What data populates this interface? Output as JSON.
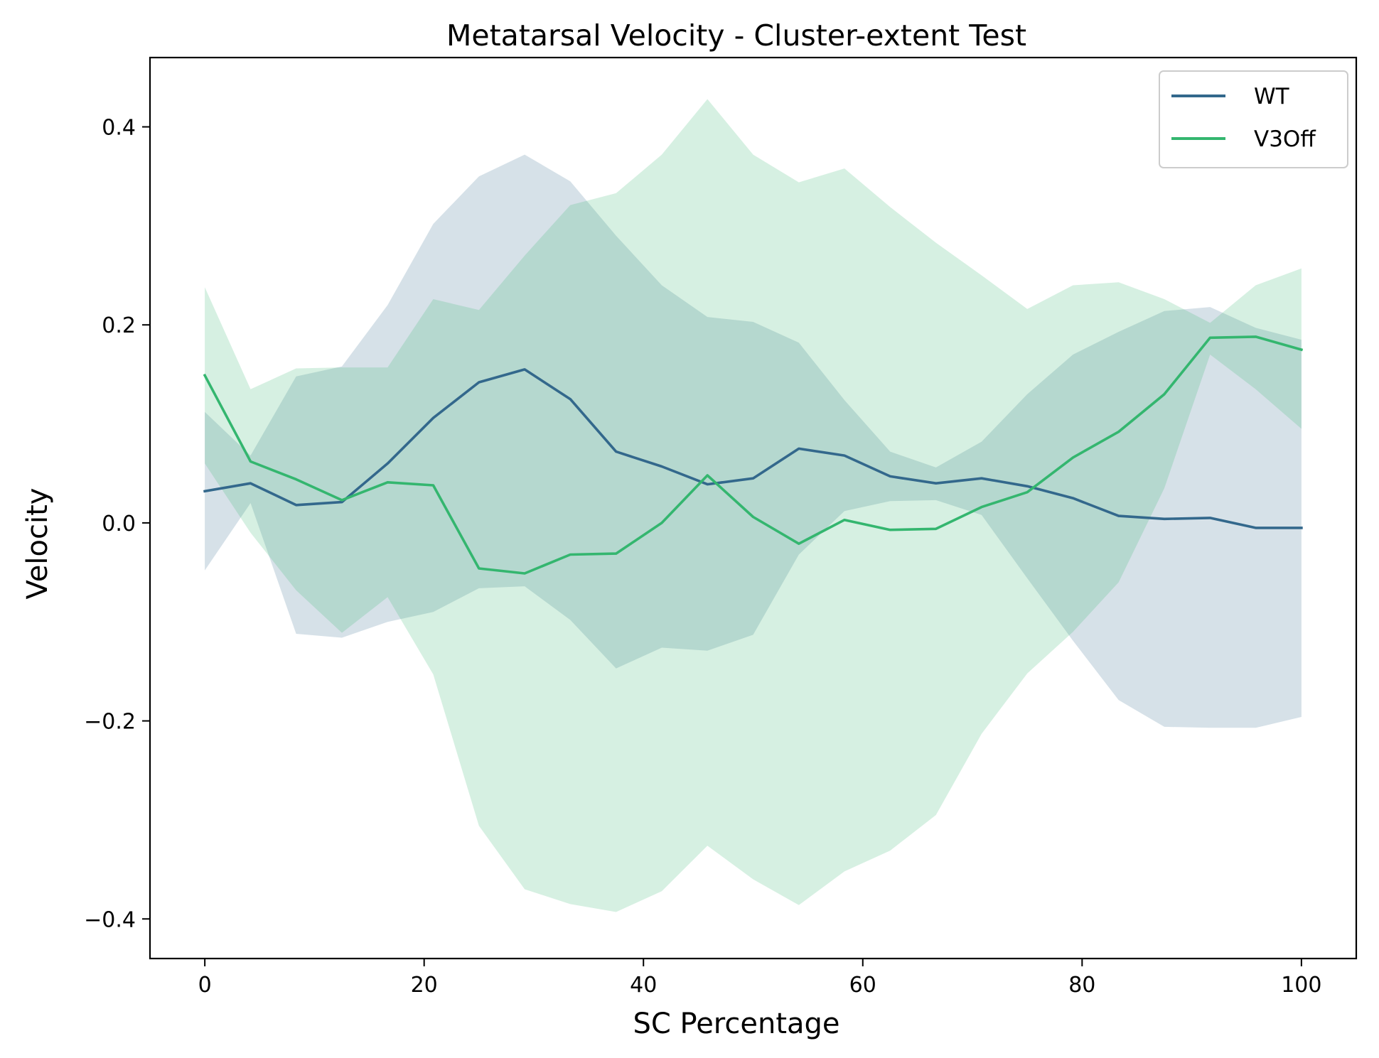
{
  "chart_data": {
    "type": "line",
    "title": "Metatarsal Velocity - Cluster-extent Test",
    "xlabel": "SC Percentage",
    "ylabel": "Velocity",
    "xlim": [
      -5,
      105
    ],
    "ylim": [
      -0.44,
      0.47
    ],
    "xticks": [
      0,
      20,
      40,
      60,
      80,
      100
    ],
    "xtick_labels": [
      "0",
      "20",
      "40",
      "60",
      "80",
      "100"
    ],
    "yticks": [
      -0.4,
      -0.2,
      0.0,
      0.2,
      0.4
    ],
    "ytick_labels": [
      "−0.4",
      "−0.2",
      "0.0",
      "0.2",
      "0.4"
    ],
    "grid": false,
    "legend_position": "top-right",
    "x": [
      0,
      4.17,
      8.33,
      12.5,
      16.67,
      20.83,
      25,
      29.17,
      33.33,
      37.5,
      41.67,
      45.83,
      50,
      54.17,
      58.33,
      62.5,
      66.67,
      70.83,
      75,
      79.17,
      83.33,
      87.5,
      91.67,
      95.83,
      100
    ],
    "series": [
      {
        "name": "WT",
        "color": "#33688c",
        "band_opacity": 0.2,
        "values": [
          0.032,
          0.04,
          0.018,
          0.021,
          0.06,
          0.106,
          0.142,
          0.155,
          0.125,
          0.072,
          0.057,
          0.039,
          0.045,
          0.075,
          0.068,
          0.047,
          0.04,
          0.045,
          0.037,
          0.025,
          0.007,
          0.004,
          0.005,
          -0.005,
          -0.005
        ],
        "upper": [
          0.112,
          0.068,
          0.148,
          0.158,
          0.22,
          0.302,
          0.35,
          0.372,
          0.345,
          0.29,
          0.24,
          0.208,
          0.203,
          0.182,
          0.124,
          0.072,
          0.056,
          0.082,
          0.13,
          0.17,
          0.193,
          0.214,
          0.218,
          0.197,
          0.185
        ],
        "lower": [
          -0.048,
          0.02,
          -0.112,
          -0.116,
          -0.1,
          -0.09,
          -0.066,
          -0.064,
          -0.098,
          -0.147,
          -0.126,
          -0.129,
          -0.113,
          -0.032,
          0.012,
          0.022,
          0.023,
          0.008,
          -0.056,
          -0.119,
          -0.179,
          -0.206,
          -0.207,
          -0.207,
          -0.196
        ]
      },
      {
        "name": "V3Off",
        "color": "#34b66f",
        "band_opacity": 0.2,
        "values": [
          0.149,
          0.062,
          0.044,
          0.023,
          0.041,
          0.038,
          -0.046,
          -0.051,
          -0.032,
          -0.031,
          0.0,
          0.048,
          0.006,
          -0.021,
          0.003,
          -0.007,
          -0.006,
          0.016,
          0.031,
          0.066,
          0.092,
          0.13,
          0.187,
          0.188,
          0.175
        ],
        "upper": [
          0.238,
          0.135,
          0.156,
          0.157,
          0.157,
          0.226,
          0.215,
          0.27,
          0.321,
          0.333,
          0.372,
          0.428,
          0.372,
          0.344,
          0.358,
          0.319,
          0.283,
          0.25,
          0.216,
          0.24,
          0.243,
          0.226,
          0.202,
          0.24,
          0.257
        ],
        "lower": [
          0.06,
          -0.01,
          -0.068,
          -0.111,
          -0.075,
          -0.153,
          -0.306,
          -0.37,
          -0.385,
          -0.393,
          -0.372,
          -0.326,
          -0.36,
          -0.386,
          -0.352,
          -0.331,
          -0.295,
          -0.213,
          -0.152,
          -0.11,
          -0.06,
          0.035,
          0.17,
          0.135,
          0.095
        ]
      }
    ]
  }
}
